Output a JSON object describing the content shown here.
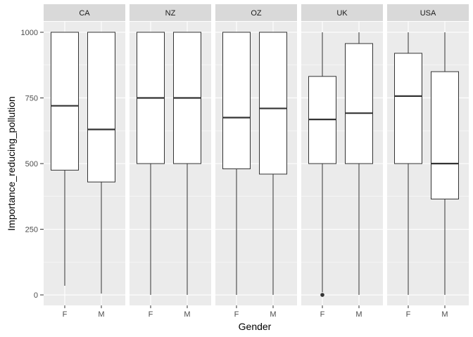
{
  "chart_data": {
    "type": "boxplot",
    "xlabel": "Gender",
    "ylabel": "Importance_reducing_pollution",
    "ylim": [
      -40,
      1040
    ],
    "yticks": [
      0,
      250,
      500,
      750,
      1000
    ],
    "categories": [
      "F",
      "M"
    ],
    "facets": [
      {
        "label": "CA",
        "boxes": [
          {
            "group": "F",
            "min": 35,
            "q1": 475,
            "median": 720,
            "q3": 1000,
            "max": 1000,
            "outliers": []
          },
          {
            "group": "M",
            "min": 5,
            "q1": 430,
            "median": 630,
            "q3": 1000,
            "max": 1000,
            "outliers": []
          }
        ]
      },
      {
        "label": "NZ",
        "boxes": [
          {
            "group": "F",
            "min": 0,
            "q1": 500,
            "median": 750,
            "q3": 1000,
            "max": 1000,
            "outliers": []
          },
          {
            "group": "M",
            "min": 0,
            "q1": 500,
            "median": 750,
            "q3": 1000,
            "max": 1000,
            "outliers": []
          }
        ]
      },
      {
        "label": "OZ",
        "boxes": [
          {
            "group": "F",
            "min": 0,
            "q1": 480,
            "median": 675,
            "q3": 1000,
            "max": 1000,
            "outliers": []
          },
          {
            "group": "M",
            "min": 0,
            "q1": 460,
            "median": 710,
            "q3": 1000,
            "max": 1000,
            "outliers": []
          }
        ]
      },
      {
        "label": "UK",
        "boxes": [
          {
            "group": "F",
            "min": 10,
            "q1": 500,
            "median": 668,
            "q3": 832,
            "max": 1000,
            "outliers": [
              0
            ]
          },
          {
            "group": "M",
            "min": 0,
            "q1": 500,
            "median": 692,
            "q3": 957,
            "max": 1000,
            "outliers": []
          }
        ]
      },
      {
        "label": "USA",
        "boxes": [
          {
            "group": "F",
            "min": 0,
            "q1": 500,
            "median": 757,
            "q3": 920,
            "max": 1000,
            "outliers": []
          },
          {
            "group": "M",
            "min": 0,
            "q1": 365,
            "median": 500,
            "q3": 850,
            "max": 1000,
            "outliers": []
          }
        ]
      }
    ],
    "style": {
      "panel_bg": "#ebebeb",
      "strip_bg": "#d9d9d9",
      "grid_color": "#ffffff",
      "box_fill": "#ffffff",
      "box_stroke": "#333333",
      "axis_text": "#4d4d4d"
    }
  }
}
